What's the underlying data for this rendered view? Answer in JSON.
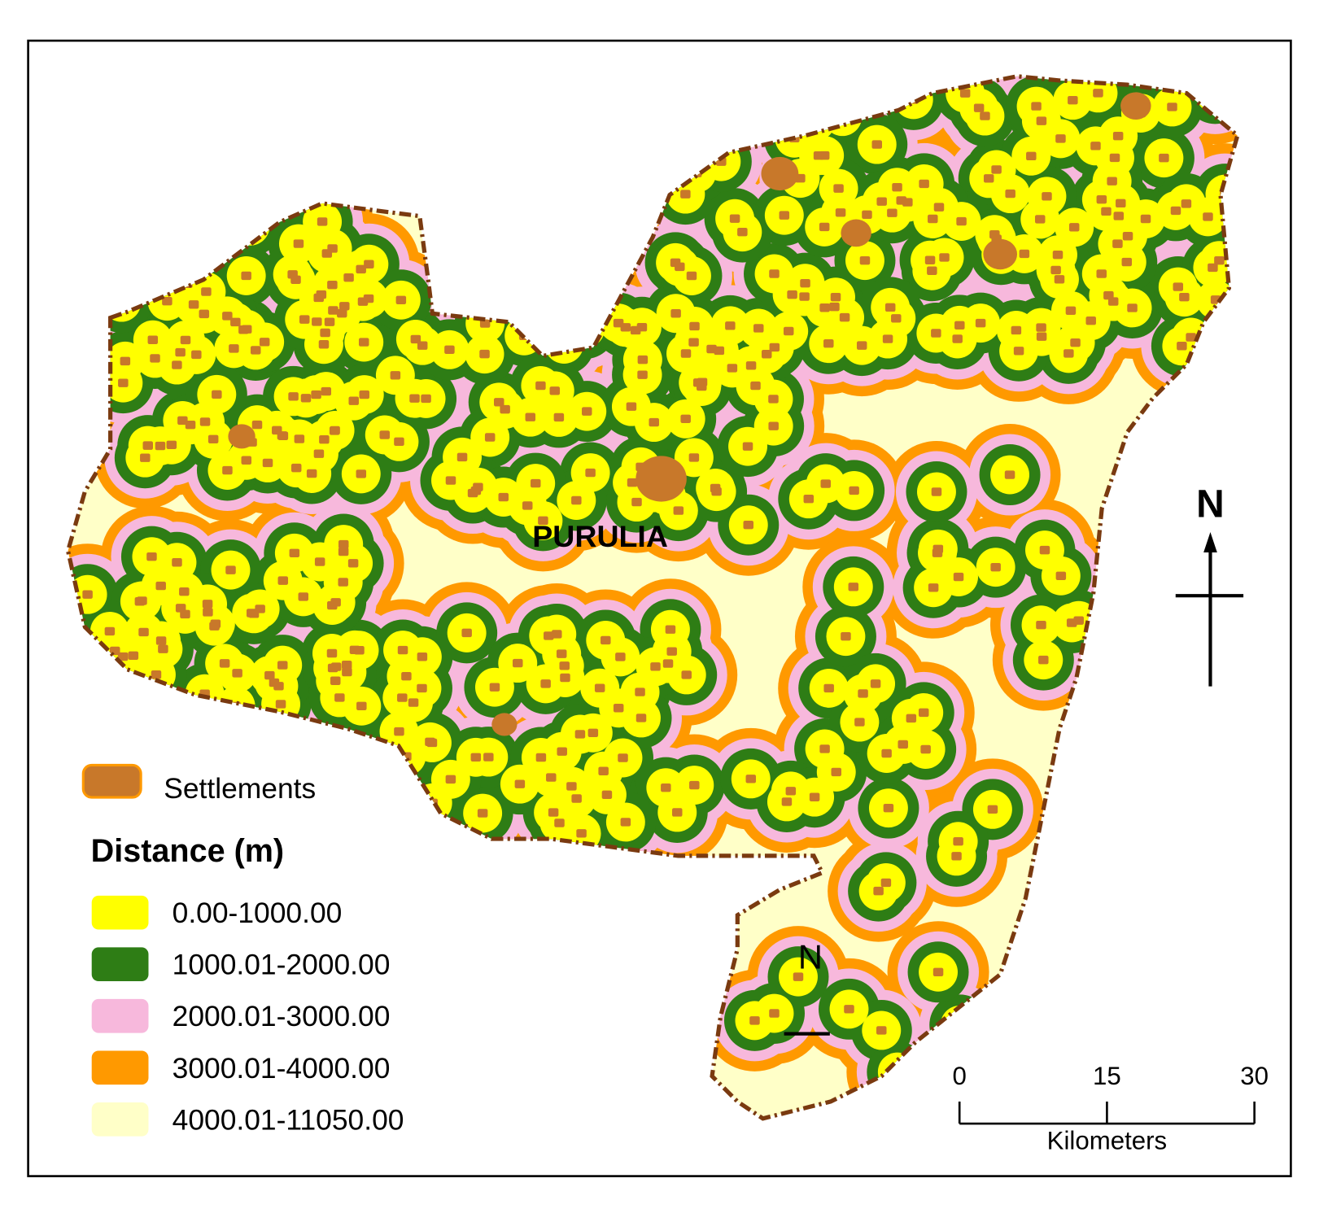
{
  "map_labels": {
    "town": "PURULIA",
    "north": "N",
    "inset_north": "N"
  },
  "legend": {
    "settlements": {
      "label": "Settlements",
      "color": "#c8782a"
    },
    "title": "Distance (m)",
    "classes": [
      {
        "label": "0.00-1000.00",
        "color": "#ffff00"
      },
      {
        "label": "1000.01-2000.00",
        "color": "#2e7d15"
      },
      {
        "label": "2000.01-3000.00",
        "color": "#f7b8dc"
      },
      {
        "label": "3000.01-4000.00",
        "color": "#ff9900"
      },
      {
        "label": "4000.01-11050.00",
        "color": "#ffffc8"
      }
    ]
  },
  "scale_bar": {
    "ticks": [
      0,
      15,
      30
    ],
    "unit": "Kilometers"
  }
}
